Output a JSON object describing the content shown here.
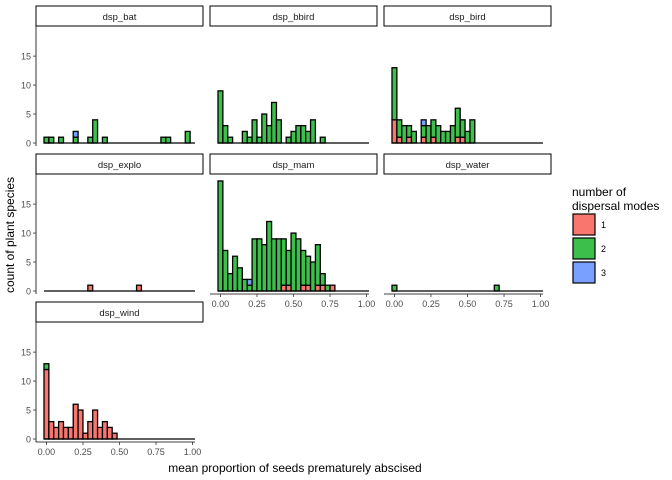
{
  "chart_data": {
    "type": "bar",
    "subtype": "faceted stacked histogram",
    "xlabel": "mean proportion of seeds prematurely abscised",
    "ylabel": "count of plant species",
    "xlim": [
      0,
      1
    ],
    "ylim": [
      0,
      19
    ],
    "x_ticks": [
      0,
      0.25,
      0.5,
      0.75,
      1.0
    ],
    "x_tick_labels": [
      "0.00",
      "0.25",
      "0.50",
      "0.75",
      "1.00"
    ],
    "y_ticks": [
      0,
      5,
      10,
      15
    ],
    "y_tick_labels": [
      "0",
      "5",
      "10",
      "15"
    ],
    "bin_width": 0.0333,
    "bin_centers": [
      0.0,
      0.0333,
      0.0667,
      0.1,
      0.1333,
      0.1667,
      0.2,
      0.2333,
      0.2667,
      0.3,
      0.3333,
      0.3667,
      0.4,
      0.4333,
      0.4667,
      0.5,
      0.5333,
      0.5667,
      0.6,
      0.6333,
      0.6667,
      0.7,
      0.7333,
      0.7667,
      0.8,
      0.8333,
      0.8667,
      0.9,
      0.9333,
      0.9667
    ],
    "legend": {
      "title": "number of\ndispersal modes",
      "position": "right",
      "items": [
        {
          "label": "1",
          "color": "#F8766D"
        },
        {
          "label": "2",
          "color": "#3DBF4B"
        },
        {
          "label": "3",
          "color": "#7AA0FF"
        }
      ]
    },
    "grid": false,
    "facets": [
      {
        "name": "dsp_bat",
        "series": [
          {
            "name": "1",
            "values": [
              0,
              0,
              0,
              0,
              0,
              0,
              0,
              0,
              0,
              0,
              0,
              0,
              0,
              0,
              0,
              0,
              0,
              0,
              0,
              0,
              0,
              0,
              0,
              0,
              0,
              0,
              0,
              0,
              0,
              0
            ]
          },
          {
            "name": "2",
            "values": [
              1,
              1,
              0,
              1,
              0,
              0,
              1,
              0,
              0,
              1,
              4,
              0,
              1,
              0,
              0,
              0,
              0,
              0,
              0,
              0,
              0,
              0,
              0,
              0,
              1,
              1,
              0,
              0,
              0,
              2
            ]
          },
          {
            "name": "3",
            "values": [
              0,
              0,
              0,
              0,
              0,
              0,
              1,
              0,
              0,
              0,
              0,
              0,
              0,
              0,
              0,
              0,
              0,
              0,
              0,
              0,
              0,
              0,
              0,
              0,
              0,
              0,
              0,
              0,
              0,
              0
            ]
          }
        ]
      },
      {
        "name": "dsp_bbird",
        "series": [
          {
            "name": "1",
            "values": [
              0,
              0,
              0,
              0,
              0,
              0,
              0,
              0,
              0,
              0,
              0,
              0,
              0,
              0,
              0,
              0,
              0,
              0,
              0,
              0,
              0,
              0,
              0,
              0,
              0,
              0,
              0,
              0,
              0,
              0
            ]
          },
          {
            "name": "2",
            "values": [
              9,
              3,
              1,
              0,
              0,
              2,
              1,
              4,
              1,
              5,
              3,
              7,
              4,
              0,
              1,
              2,
              3,
              3,
              2,
              4,
              0,
              1,
              0,
              0,
              0,
              0,
              0,
              0,
              0,
              0
            ]
          },
          {
            "name": "3",
            "values": [
              0,
              0,
              0,
              0,
              0,
              0,
              0,
              0,
              0,
              0,
              0,
              0,
              0,
              0,
              0,
              0,
              0,
              0,
              0,
              0,
              0,
              0,
              0,
              0,
              0,
              0,
              0,
              0,
              0,
              0
            ]
          }
        ]
      },
      {
        "name": "dsp_bird",
        "series": [
          {
            "name": "1",
            "values": [
              4,
              1,
              0,
              1,
              0,
              0,
              1,
              0,
              1,
              0,
              0,
              0,
              0,
              1,
              1,
              0,
              0,
              0,
              0,
              0,
              0,
              0,
              0,
              0,
              0,
              0,
              0,
              0,
              0,
              0
            ]
          },
          {
            "name": "2",
            "values": [
              9,
              3,
              3,
              2,
              2,
              0,
              2,
              3,
              3,
              3,
              2,
              2,
              3,
              5,
              3,
              2,
              4,
              0,
              0,
              0,
              0,
              0,
              0,
              0,
              0,
              0,
              0,
              0,
              0,
              0
            ]
          },
          {
            "name": "3",
            "values": [
              0,
              0,
              0,
              0,
              0,
              0,
              1,
              0,
              0,
              0,
              0,
              0,
              0,
              0,
              0,
              0,
              0,
              0,
              0,
              0,
              0,
              0,
              0,
              0,
              0,
              0,
              0,
              0,
              0,
              0
            ]
          }
        ]
      },
      {
        "name": "dsp_explo",
        "series": [
          {
            "name": "1",
            "values": [
              0,
              0,
              0,
              0,
              0,
              0,
              0,
              0,
              0,
              1,
              0,
              0,
              0,
              0,
              0,
              0,
              0,
              0,
              0,
              1,
              0,
              0,
              0,
              0,
              0,
              0,
              0,
              0,
              0,
              0
            ]
          },
          {
            "name": "2",
            "values": [
              0,
              0,
              0,
              0,
              0,
              0,
              0,
              0,
              0,
              0,
              0,
              0,
              0,
              0,
              0,
              0,
              0,
              0,
              0,
              0,
              0,
              0,
              0,
              0,
              0,
              0,
              0,
              0,
              0,
              0
            ]
          },
          {
            "name": "3",
            "values": [
              0,
              0,
              0,
              0,
              0,
              0,
              0,
              0,
              0,
              0,
              0,
              0,
              0,
              0,
              0,
              0,
              0,
              0,
              0,
              0,
              0,
              0,
              0,
              0,
              0,
              0,
              0,
              0,
              0,
              0
            ]
          }
        ]
      },
      {
        "name": "dsp_mam",
        "series": [
          {
            "name": "1",
            "values": [
              0,
              0,
              0,
              0,
              0,
              0,
              0,
              0,
              0,
              0,
              0,
              0,
              0,
              1,
              1,
              0,
              0,
              1,
              1,
              0,
              1,
              1,
              0,
              1,
              0,
              0,
              0,
              0,
              0,
              0
            ]
          },
          {
            "name": "2",
            "values": [
              19,
              7,
              3,
              6,
              4,
              2,
              1,
              9,
              9,
              8,
              12,
              9,
              9,
              8,
              6,
              10,
              9,
              6,
              5,
              5,
              7,
              2,
              1,
              0,
              0,
              0,
              0,
              0,
              0,
              0
            ]
          },
          {
            "name": "3",
            "values": [
              0,
              0,
              0,
              0,
              0,
              0,
              1,
              0,
              0,
              0,
              0,
              0,
              0,
              0,
              0,
              0,
              0,
              0,
              0,
              0,
              0,
              0,
              0,
              0,
              0,
              0,
              0,
              0,
              0,
              0
            ]
          }
        ]
      },
      {
        "name": "dsp_water",
        "series": [
          {
            "name": "1",
            "values": [
              0,
              0,
              0,
              0,
              0,
              0,
              0,
              0,
              0,
              0,
              0,
              0,
              0,
              0,
              0,
              0,
              0,
              0,
              0,
              0,
              0,
              0,
              0,
              0,
              0,
              0,
              0,
              0,
              0,
              0
            ]
          },
          {
            "name": "2",
            "values": [
              1,
              0,
              0,
              0,
              0,
              0,
              0,
              0,
              0,
              0,
              0,
              0,
              0,
              0,
              0,
              0,
              0,
              0,
              0,
              0,
              0,
              1,
              0,
              0,
              0,
              0,
              0,
              0,
              0,
              0
            ]
          },
          {
            "name": "3",
            "values": [
              0,
              0,
              0,
              0,
              0,
              0,
              0,
              0,
              0,
              0,
              0,
              0,
              0,
              0,
              0,
              0,
              0,
              0,
              0,
              0,
              0,
              0,
              0,
              0,
              0,
              0,
              0,
              0,
              0,
              0
            ]
          }
        ]
      },
      {
        "name": "dsp_wind",
        "series": [
          {
            "name": "1",
            "values": [
              12,
              3,
              2,
              3,
              2,
              2,
              6,
              5,
              1,
              3,
              5,
              2,
              3,
              2,
              1,
              0,
              0,
              0,
              0,
              0,
              0,
              0,
              0,
              0,
              0,
              0,
              0,
              0,
              0,
              0
            ]
          },
          {
            "name": "2",
            "values": [
              1,
              0,
              0,
              0,
              0,
              0,
              0,
              0,
              0,
              0,
              0,
              0,
              0,
              0,
              0,
              0,
              0,
              0,
              0,
              0,
              0,
              0,
              0,
              0,
              0,
              0,
              0,
              0,
              0,
              0
            ]
          },
          {
            "name": "3",
            "values": [
              0,
              0,
              0,
              0,
              0,
              0,
              0,
              0,
              0,
              0,
              0,
              0,
              0,
              0,
              0,
              0,
              0,
              0,
              0,
              0,
              0,
              0,
              0,
              0,
              0,
              0,
              0,
              0,
              0,
              0
            ]
          }
        ]
      }
    ]
  }
}
